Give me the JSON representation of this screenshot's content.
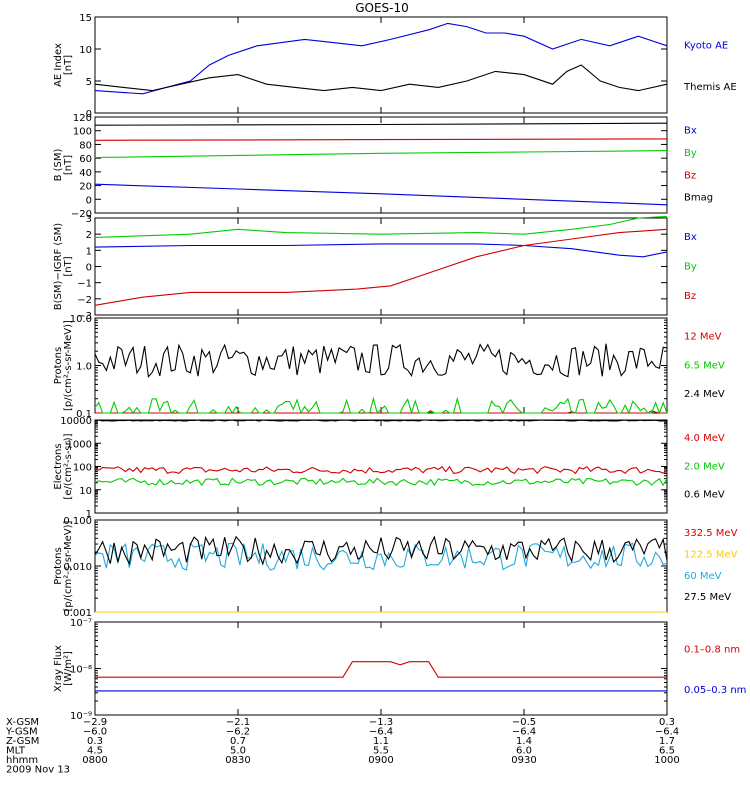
{
  "title": "GOES-10",
  "colors": {
    "black": "#000000",
    "red": "#d40000",
    "green": "#00cc00",
    "blue": "#0000dd",
    "cyan": "#22aadd",
    "yellow": "#ffcc00"
  },
  "chart_data": [
    {
      "type": "line",
      "panel": "ae",
      "ylabel": [
        "AE Index",
        "[nT]"
      ],
      "ylim": [
        0,
        15
      ],
      "yticks": [
        {
          "v": 0,
          "t": "0"
        },
        {
          "v": 5,
          "t": "5"
        },
        {
          "v": 10,
          "t": "10"
        },
        {
          "v": 15,
          "t": "15"
        }
      ],
      "x": [
        0,
        20,
        40,
        60,
        80,
        100,
        120
      ],
      "series": [
        {
          "name": "Kyoto AE",
          "color": "blue",
          "x": [
            0,
            10,
            15,
            20,
            24,
            28,
            34,
            44,
            50,
            56,
            62,
            70,
            74,
            78,
            82,
            86,
            90,
            96,
            102,
            108,
            114,
            118,
            120
          ],
          "values": [
            3.5,
            3,
            4,
            5,
            7.5,
            9,
            10.5,
            11.5,
            11,
            10.5,
            11.5,
            13,
            14,
            13.5,
            12.5,
            12.5,
            12,
            10,
            11.5,
            10.5,
            12,
            11,
            10.5
          ]
        },
        {
          "name": "Themis AE",
          "color": "black",
          "x": [
            0,
            6,
            12,
            18,
            24,
            30,
            36,
            42,
            48,
            54,
            60,
            66,
            72,
            78,
            84,
            90,
            96,
            99,
            102,
            106,
            110,
            114,
            120
          ],
          "values": [
            4.5,
            4,
            3.5,
            4.5,
            5.5,
            6,
            4.5,
            4,
            3.5,
            4,
            3.5,
            4.5,
            4,
            5,
            6.5,
            6,
            4.5,
            6.5,
            7.5,
            5,
            4,
            3.5,
            4.5
          ]
        }
      ]
    },
    {
      "type": "line",
      "panel": "b",
      "ylabel": [
        "B (SM)",
        "[nT]"
      ],
      "ylim": [
        -20,
        120
      ],
      "yticks": [
        {
          "v": -20,
          "t": "−20"
        },
        {
          "v": 0,
          "t": "0"
        },
        {
          "v": 20,
          "t": "20"
        },
        {
          "v": 40,
          "t": "40"
        },
        {
          "v": 60,
          "t": "60"
        },
        {
          "v": 80,
          "t": "80"
        },
        {
          "v": 100,
          "t": "100"
        },
        {
          "v": 120,
          "t": "120"
        }
      ],
      "series": [
        {
          "name": "Bx",
          "color": "blue",
          "x": [
            0,
            30,
            60,
            90,
            120
          ],
          "values": [
            22,
            15,
            8,
            0,
            -8
          ]
        },
        {
          "name": "By",
          "color": "green",
          "x": [
            0,
            30,
            60,
            90,
            120
          ],
          "values": [
            61,
            64,
            67,
            69,
            71
          ]
        },
        {
          "name": "Bz",
          "color": "red",
          "x": [
            0,
            60,
            120
          ],
          "values": [
            86,
            87,
            88
          ]
        },
        {
          "name": "Bmag",
          "color": "black",
          "x": [
            0,
            60,
            120
          ],
          "values": [
            108,
            109,
            111
          ]
        }
      ]
    },
    {
      "type": "line",
      "panel": "igrf",
      "ylabel": [
        "B(SM)−IGRF (SM)",
        "[nT]"
      ],
      "ylim": [
        -3,
        3
      ],
      "yticks": [
        {
          "v": -3,
          "t": "−3"
        },
        {
          "v": -2,
          "t": "−2"
        },
        {
          "v": -1,
          "t": "−1"
        },
        {
          "v": 0,
          "t": "0"
        },
        {
          "v": 1,
          "t": "1"
        },
        {
          "v": 2,
          "t": "2"
        },
        {
          "v": 3,
          "t": "3"
        }
      ],
      "series": [
        {
          "name": "Bx",
          "color": "blue",
          "x": [
            0,
            20,
            40,
            60,
            80,
            90,
            100,
            110,
            115,
            120
          ],
          "values": [
            1.2,
            1.3,
            1.3,
            1.4,
            1.4,
            1.3,
            1.1,
            0.7,
            0.6,
            0.9
          ]
        },
        {
          "name": "By",
          "color": "green",
          "x": [
            0,
            20,
            30,
            40,
            60,
            80,
            90,
            100,
            108,
            114,
            120
          ],
          "values": [
            1.8,
            2.0,
            2.3,
            2.1,
            2.0,
            2.1,
            2.0,
            2.3,
            2.6,
            3.0,
            3.1
          ]
        },
        {
          "name": "Bz",
          "color": "red",
          "x": [
            0,
            10,
            20,
            40,
            55,
            62,
            70,
            80,
            90,
            100,
            110,
            120
          ],
          "values": [
            -2.4,
            -1.9,
            -1.6,
            -1.6,
            -1.4,
            -1.2,
            -0.4,
            0.6,
            1.3,
            1.7,
            2.1,
            2.3
          ]
        }
      ]
    },
    {
      "type": "line",
      "panel": "protons",
      "ylabel": [
        "Protons",
        "[p/(cm²-s-sr-MeV)]"
      ],
      "yscale": "log",
      "ylim": [
        0.1,
        10
      ],
      "yticks": [
        {
          "v": 0.1,
          "t": "0.1"
        },
        {
          "v": 1,
          "t": "1.0"
        },
        {
          "v": 10,
          "t": "10.0"
        }
      ],
      "series": [
        {
          "name": "12 MeV",
          "color": "red",
          "values": []
        },
        {
          "name": "6.5 MeV",
          "color": "green",
          "values": []
        },
        {
          "name": "2.4 MeV",
          "color": "black",
          "values": []
        }
      ]
    },
    {
      "type": "line",
      "panel": "electrons",
      "ylabel": [
        "Electrons",
        "[e/(cm²-s-sr)]"
      ],
      "yscale": "log",
      "ylim": [
        1,
        10000
      ],
      "yticks": [
        {
          "v": 1,
          "t": "1"
        },
        {
          "v": 10,
          "t": "10"
        },
        {
          "v": 100,
          "t": "100"
        },
        {
          "v": 1000,
          "t": "1000"
        },
        {
          "v": 10000,
          "t": "10000"
        }
      ],
      "series": [
        {
          "name": "4.0 MeV",
          "color": "red",
          "values": []
        },
        {
          "name": "2.0 MeV",
          "color": "green",
          "values": []
        },
        {
          "name": "0.6 MeV",
          "color": "black",
          "values": []
        }
      ]
    },
    {
      "type": "line",
      "panel": "hprotons",
      "ylabel": [
        "Protons",
        "[p/(cm²-s-sr-MeV)]"
      ],
      "yscale": "log",
      "ylim": [
        0.001,
        0.1
      ],
      "yticks": [
        {
          "v": 0.001,
          "t": "0.001"
        },
        {
          "v": 0.01,
          "t": "0.010"
        },
        {
          "v": 0.1,
          "t": "0.100"
        }
      ],
      "series": [
        {
          "name": "332.5 MeV",
          "color": "red",
          "values": []
        },
        {
          "name": "122.5 MeV",
          "color": "yellow",
          "values": []
        },
        {
          "name": "60 MeV",
          "color": "cyan",
          "values": []
        },
        {
          "name": "27.5 MeV",
          "color": "black",
          "values": []
        }
      ]
    },
    {
      "type": "line",
      "panel": "xray",
      "ylabel": [
        "Xray Flux",
        "[W/m²]"
      ],
      "yscale": "log",
      "ylim": [
        1e-09,
        1e-07
      ],
      "yticks": [
        {
          "v": 1e-09,
          "t": "10⁻⁹"
        },
        {
          "v": 1e-08,
          "t": "10⁻⁸"
        },
        {
          "v": 1e-07,
          "t": "10⁻⁷"
        }
      ],
      "series": [
        {
          "name": "0.1–0.8 nm",
          "color": "red",
          "x": [
            0,
            52,
            54,
            62,
            64,
            66,
            70,
            72,
            120
          ],
          "values": [
            6.5e-09,
            6.5e-09,
            1.4e-08,
            1.4e-08,
            1.2e-08,
            1.4e-08,
            1.4e-08,
            6.5e-09,
            6.5e-09
          ]
        },
        {
          "name": "0.05–0.3 nm",
          "color": "blue",
          "x": [
            0,
            120
          ],
          "values": [
            3.3e-09,
            3.3e-09
          ]
        }
      ]
    }
  ],
  "xaxis": {
    "xlim": [
      0,
      120
    ],
    "ticks": [
      0,
      30,
      60,
      90,
      120
    ],
    "rows": [
      {
        "label": "X-GSM",
        "values": [
          "−2.9",
          "−2.1",
          "−1.3",
          "−0.5",
          "0.3"
        ]
      },
      {
        "label": "Y-GSM",
        "values": [
          "−6.0",
          "−6.2",
          "−6.4",
          "−6.4",
          "−6.4"
        ]
      },
      {
        "label": "Z-GSM",
        "values": [
          "0.3",
          "0.7",
          "1.1",
          "1.4",
          "1.7"
        ]
      },
      {
        "label": "MLT",
        "values": [
          "4.5",
          "5.0",
          "5.5",
          "6.0",
          "6.5"
        ]
      },
      {
        "label": "hhmm",
        "values": [
          "0800",
          "0830",
          "0900",
          "0930",
          "1000"
        ]
      }
    ],
    "date": "2009 Nov 13"
  }
}
